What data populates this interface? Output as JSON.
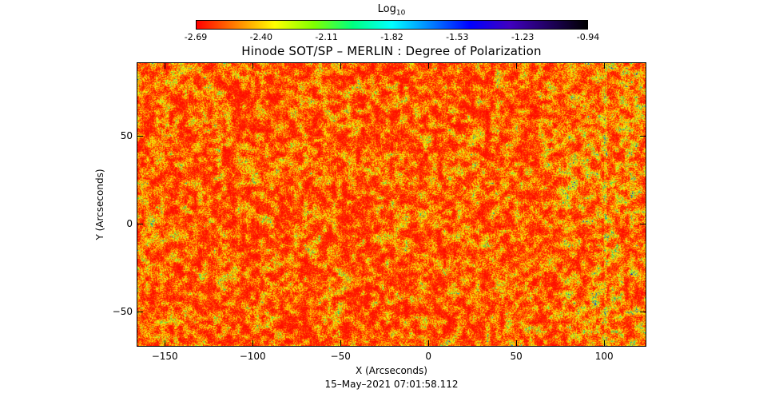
{
  "colorbar": {
    "title_main": "Log",
    "title_sub": "10",
    "ticks": [
      "-2.69",
      "-2.40",
      "-2.11",
      "-1.82",
      "-1.53",
      "-1.23",
      "-0.94"
    ],
    "gradient": [
      "#ff0000",
      "#ff8000",
      "#ffff00",
      "#80ff00",
      "#00ff80",
      "#00ffff",
      "#0080ff",
      "#0000ff",
      "#4000c0",
      "#200060",
      "#000000"
    ]
  },
  "plot": {
    "title": "Hinode SOT/SP – MERLIN : Degree of Polarization",
    "x_label": "X (Arcseconds)",
    "y_label": "Y (Arcseconds)",
    "x_range": [
      -166,
      124
    ],
    "y_range": [
      -70,
      92
    ],
    "x_ticks": [
      "−150",
      "−100",
      "−50",
      "0",
      "50",
      "100"
    ],
    "y_ticks": [
      "−50",
      "0",
      "50"
    ],
    "timestamp": "15–May–2021 07:01:58.112"
  }
}
